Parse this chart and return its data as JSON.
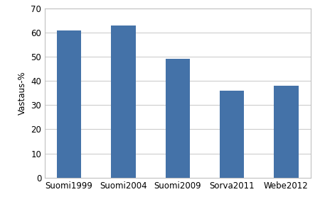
{
  "categories": [
    "Suomi1999",
    "Suomi2004",
    "Suomi2009",
    "Sorva2011",
    "Webe2012"
  ],
  "values": [
    61,
    63,
    49,
    36,
    38
  ],
  "bar_color": "#4472a8",
  "ylabel": "Vastaus-%",
  "ylim": [
    0,
    70
  ],
  "yticks": [
    0,
    10,
    20,
    30,
    40,
    50,
    60,
    70
  ],
  "bar_width": 0.45,
  "figure_background_color": "#ffffff",
  "plot_background_color": "#ffffff",
  "grid_color": "#c8c8c8",
  "spine_color": "#c0c0c0",
  "tick_fontsize": 8.5,
  "ylabel_fontsize": 8.5,
  "figsize": [
    4.5,
    2.95
  ],
  "dpi": 100
}
